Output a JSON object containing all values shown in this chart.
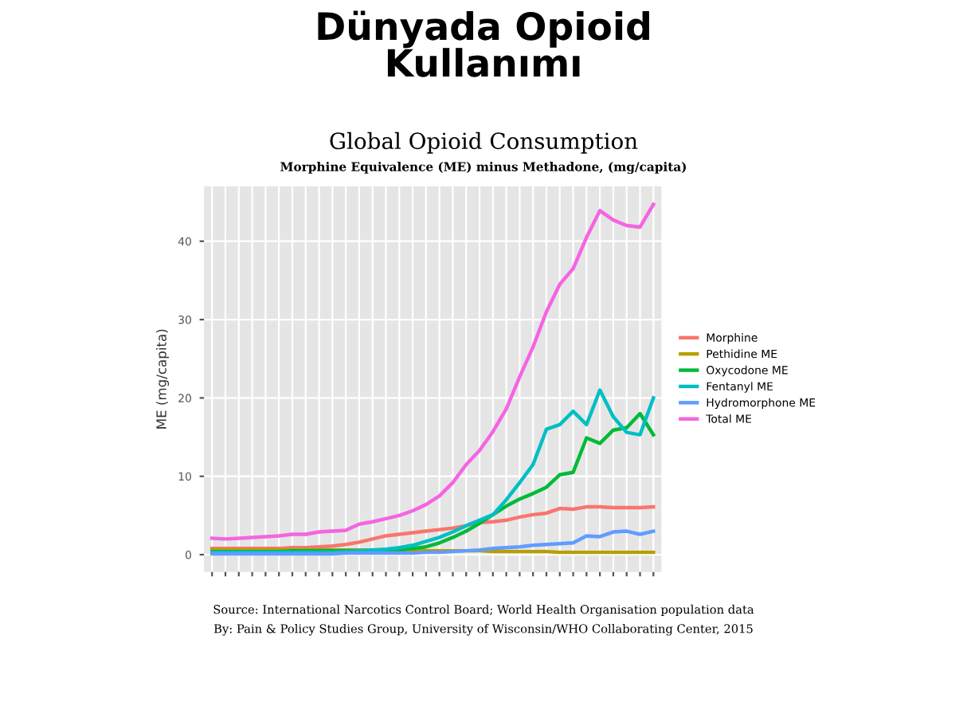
{
  "chart_data": {
    "type": "line",
    "title": "Dünyada Opioid\nKullanımı",
    "subtitle": "Global Opioid Consumption\nMorphine Equivalence (ME) minus Methadone, (mg/capita)",
    "ylabel": "ME (mg/capita)",
    "categories": [
      null,
      null,
      null,
      null,
      null,
      null,
      null,
      null,
      null,
      null,
      null,
      null,
      null,
      null,
      null,
      null,
      null,
      null,
      null,
      null,
      null,
      null,
      null,
      null,
      null,
      null,
      null,
      null,
      null,
      null,
      null,
      null,
      null,
      null
    ],
    "series": [
      {
        "name": "Morphine",
        "color": "#f8766d",
        "values": [
          0.8,
          0.8,
          0.8,
          0.8,
          0.8,
          0.8,
          0.9,
          0.9,
          1.0,
          1.1,
          1.3,
          1.6,
          2.0,
          2.4,
          2.6,
          2.8,
          3.0,
          3.2,
          3.4,
          3.7,
          4.1,
          4.2,
          4.4,
          4.8,
          5.1,
          5.3,
          5.9,
          5.8,
          6.1,
          6.1,
          6.0,
          6.0,
          6.0,
          6.1
        ]
      },
      {
        "name": "Pethidine ME",
        "color": "#b79f00",
        "values": [
          0.6,
          0.6,
          0.6,
          0.6,
          0.6,
          0.6,
          0.6,
          0.6,
          0.6,
          0.6,
          0.6,
          0.6,
          0.6,
          0.6,
          0.6,
          0.5,
          0.5,
          0.5,
          0.5,
          0.5,
          0.5,
          0.4,
          0.4,
          0.4,
          0.4,
          0.4,
          0.3,
          0.3,
          0.3,
          0.3,
          0.3,
          0.3,
          0.3,
          0.3
        ]
      },
      {
        "name": "Oxycodone ME",
        "color": "#00ba38",
        "values": [
          0.4,
          0.4,
          0.4,
          0.4,
          0.4,
          0.4,
          0.5,
          0.5,
          0.5,
          0.5,
          0.5,
          0.5,
          0.5,
          0.6,
          0.6,
          0.8,
          1.0,
          1.5,
          2.2,
          3.0,
          4.0,
          5.1,
          6.2,
          7.1,
          7.8,
          8.6,
          10.2,
          10.5,
          14.9,
          14.2,
          15.9,
          16.2,
          18.0,
          15.3
        ]
      },
      {
        "name": "Fentanyl ME",
        "color": "#00bfc4",
        "values": [
          0.3,
          0.3,
          0.3,
          0.3,
          0.3,
          0.3,
          0.3,
          0.3,
          0.3,
          0.3,
          0.4,
          0.5,
          0.6,
          0.7,
          0.9,
          1.2,
          1.7,
          2.2,
          2.9,
          3.7,
          4.4,
          5.1,
          7.0,
          9.2,
          11.5,
          16.0,
          16.6,
          18.3,
          16.6,
          21.0,
          17.6,
          15.6,
          15.3,
          20.0
        ]
      },
      {
        "name": "Hydromorphone ME",
        "color": "#619cff",
        "values": [
          0.1,
          0.1,
          0.1,
          0.1,
          0.1,
          0.1,
          0.1,
          0.1,
          0.1,
          0.1,
          0.2,
          0.2,
          0.2,
          0.2,
          0.2,
          0.2,
          0.3,
          0.3,
          0.4,
          0.5,
          0.6,
          0.8,
          0.9,
          1.0,
          1.2,
          1.3,
          1.4,
          1.5,
          2.4,
          2.3,
          2.9,
          3.0,
          2.6,
          3.0
        ]
      },
      {
        "name": "Total ME",
        "color": "#f564e3",
        "values": [
          2.1,
          2.0,
          2.1,
          2.2,
          2.3,
          2.4,
          2.6,
          2.6,
          2.9,
          3.0,
          3.1,
          3.9,
          4.2,
          4.6,
          5.0,
          5.6,
          6.4,
          7.5,
          9.2,
          11.5,
          13.3,
          15.7,
          18.6,
          22.7,
          26.5,
          31.0,
          34.5,
          36.5,
          40.5,
          43.9,
          42.7,
          42.0,
          41.8,
          44.7
        ]
      }
    ],
    "ylim": [
      -2.2,
      47
    ],
    "yticks": [
      0,
      10,
      20,
      30,
      40
    ],
    "grid": true,
    "legend": "right",
    "annotations": [
      "Source: International Narcotics Control Board; World Health Organisation population data",
      "By: Pain & Policy Studies Group, University of Wisconsin/WHO Collaborating Center, 2015"
    ]
  }
}
